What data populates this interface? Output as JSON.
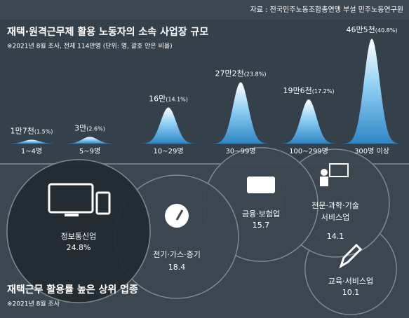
{
  "source": "자료 : 전국민주노동조합총연맹 부설 민주노동연구원",
  "chart_data": [
    {
      "type": "bell",
      "title": "재택·원격근무제 활용 노동자의 소속 사업장 규모",
      "subtitle": "※2021년 8월 조사, 전체 114만명 (단위: 명, 괄호 안은 비율)",
      "categories": [
        "1~4명",
        "5~9명",
        "10~29명",
        "30~99명",
        "100~299명",
        "300명 이상"
      ],
      "values": [
        17000,
        30000,
        160000,
        272000,
        196000,
        465000
      ],
      "value_labels": [
        "1만7천",
        "3만",
        "16만",
        "27만2천",
        "19만6천",
        "46만5천"
      ],
      "shares": [
        1.5,
        2.6,
        14.1,
        23.8,
        17.2,
        40.8
      ],
      "share_labels": [
        "(1.5%)",
        "(2.6%)",
        "(14.1%)",
        "(23.8%)",
        "(17.2%)",
        "(40.8%)"
      ],
      "color": "#4fa8de"
    },
    {
      "type": "bubble",
      "title": "재택근무 활용률 높은 상위 업종",
      "subtitle": "※2021년 8월 조사",
      "categories": [
        "정보통신업",
        "전기·가스·증기",
        "금융·보험업",
        "전문·과학·기술 서비스업",
        "교육·서비스업"
      ],
      "values": [
        24.8,
        18.4,
        15.7,
        14.1,
        10.1
      ],
      "value_labels": [
        "24.8%",
        "18.4",
        "15.7",
        "14.1",
        "10.1"
      ],
      "color": "#3b4750"
    }
  ]
}
